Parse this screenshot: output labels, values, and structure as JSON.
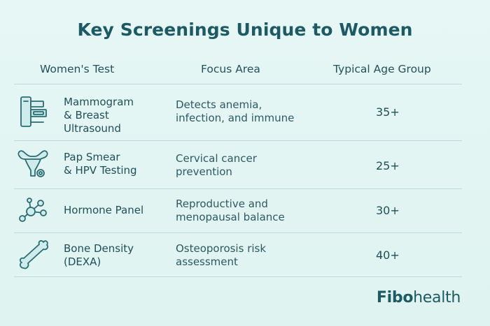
{
  "title": "Key Screenings Unique to Women",
  "columns": {
    "test": "Women's Test",
    "focus": "Focus Area",
    "age": "Typical Age Group"
  },
  "rows": [
    {
      "icon": "mammography-machine-icon",
      "test": "Mammogram\n& Breast\nUltrasound",
      "focus": "Detects anemia,\ninfection, and immune",
      "age": "35+"
    },
    {
      "icon": "uterus-icon",
      "test": "Pap Smear\n& HPV Testing",
      "focus": "Cervical cancer\nprevention",
      "age": "25+"
    },
    {
      "icon": "molecule-icon",
      "test": "Hormone Panel",
      "focus": "Reproductive and\nmenopausal balance",
      "age": "30+"
    },
    {
      "icon": "bone-icon",
      "test": "Bone Density\n(DEXA)",
      "focus": "Osteoporosis risk\nassessment",
      "age": "40+"
    }
  ],
  "brand": {
    "part1": "Fibo",
    "part2": "health"
  },
  "colors": {
    "background": "#e3f6f4",
    "text": "#1f4f57",
    "icon_stroke": "#2d6b72",
    "divider": "#bddbd8"
  }
}
